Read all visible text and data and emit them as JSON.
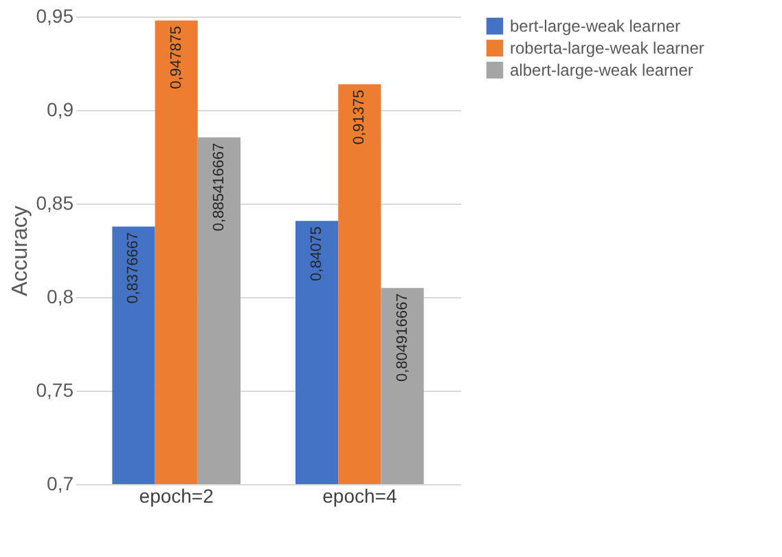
{
  "chart_data": {
    "type": "bar",
    "ylabel": "Accuracy",
    "categories": [
      "epoch=2",
      "epoch=4"
    ],
    "series": [
      {
        "name": "bert-large-weak learner",
        "color": "#4472c4",
        "values": [
          0.8376667,
          0.84075
        ],
        "value_labels": [
          "0,8376667",
          "0,84075"
        ]
      },
      {
        "name": "roberta-large-weak learner",
        "color": "#ed7d31",
        "values": [
          0.947875,
          0.91375
        ],
        "value_labels": [
          "0,947875",
          "0,91375"
        ]
      },
      {
        "name": "albert-large-weak learner",
        "color": "#a5a5a5",
        "values": [
          0.885416667,
          0.804916667
        ],
        "value_labels": [
          "0,885416667",
          "0,804916667"
        ]
      }
    ],
    "ylim": [
      0.7,
      0.95
    ],
    "yticks": [
      {
        "value": 0.7,
        "label": "0,7"
      },
      {
        "value": 0.75,
        "label": "0,75"
      },
      {
        "value": 0.8,
        "label": "0,8"
      },
      {
        "value": 0.85,
        "label": "0,85"
      },
      {
        "value": 0.9,
        "label": "0,9"
      },
      {
        "value": 0.95,
        "label": "0,95"
      }
    ],
    "grid": "y",
    "legend": "right"
  }
}
